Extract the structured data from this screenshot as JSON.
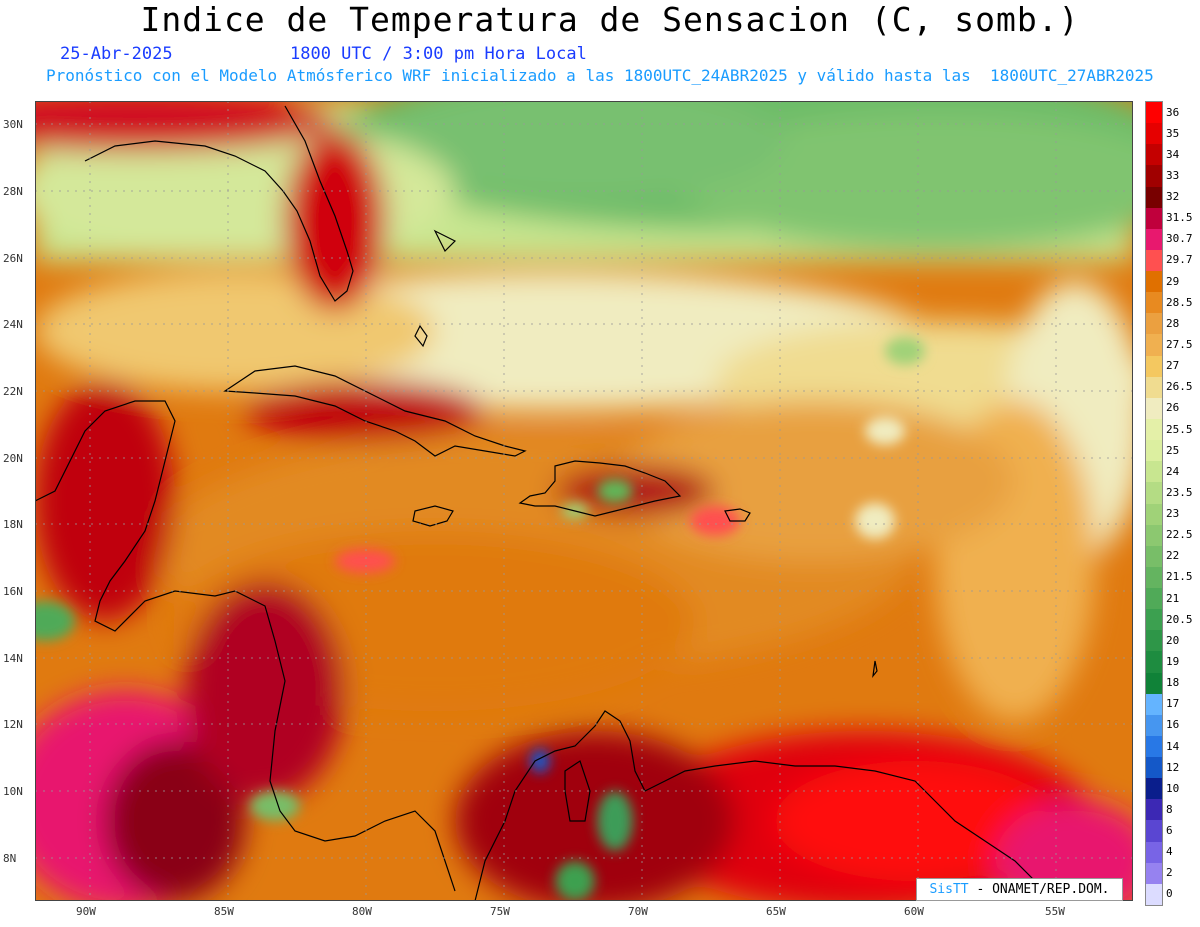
{
  "title": "Indice de Temperatura de Sensacion (C, somb.)",
  "date": "25-Abr-2025",
  "time": "1800 UTC / 3:00 pm Hora Local",
  "forecast": "Pronóstico con el Modelo Atmósferico WRF inicializado a las 1800UTC_24ABR2025 y válido hasta las  1800UTC_27ABR2025",
  "credit": {
    "logo": "SisTT",
    "text": "- ONAMET/REP.DOM."
  },
  "lat_labels": [
    "30N",
    "28N",
    "26N",
    "24N",
    "22N",
    "20N",
    "18N",
    "16N",
    "14N",
    "12N",
    "10N",
    "8N"
  ],
  "lon_labels": [
    "90W",
    "85W",
    "80W",
    "75W",
    "70W",
    "65W",
    "60W",
    "55W"
  ],
  "colorbar": {
    "labels": [
      "36",
      "35",
      "34",
      "33",
      "32",
      "31.5",
      "30.7",
      "29.7",
      "29",
      "28.5",
      "28",
      "27.5",
      "27",
      "26.5",
      "26",
      "25.5",
      "25",
      "24",
      "23.5",
      "23",
      "22.5",
      "22",
      "21.5",
      "21",
      "20.5",
      "20",
      "19",
      "18",
      "17",
      "16",
      "14",
      "12",
      "10",
      "8",
      "6",
      "4",
      "2",
      "0"
    ],
    "colors": [
      "#ff0000",
      "#e60000",
      "#c40000",
      "#a00000",
      "#780000",
      "#c0003c",
      "#e8186e",
      "#ff5050",
      "#e07000",
      "#e88a20",
      "#eba040",
      "#f0b050",
      "#f4c860",
      "#f0dc90",
      "#f0ecc0",
      "#e4f0a8",
      "#dcefa0",
      "#c8e690",
      "#b4dc84",
      "#a0d278",
      "#8cc870",
      "#78be68",
      "#64b460",
      "#50aa58",
      "#3ca050",
      "#2e9648",
      "#1e8c40",
      "#108238",
      "#64b4ff",
      "#4696f0",
      "#2878e6",
      "#1458c8",
      "#0a1e8c",
      "#3c28b4",
      "#5a46d2",
      "#7864e6",
      "#9682f0",
      "#dcdcff"
    ]
  }
}
